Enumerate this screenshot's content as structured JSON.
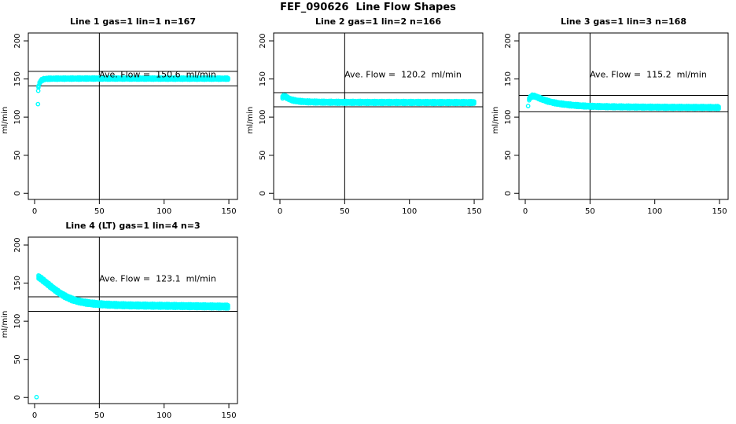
{
  "page": {
    "title": "FEF_090626  Line Flow Shapes"
  },
  "colors": {
    "points": "#00FFFF",
    "axis": "#000000",
    "ref_lines": "#000000",
    "background": "#FFFFFF",
    "text": "#000000"
  },
  "axes": {
    "x_ticks": [
      0,
      50,
      100,
      150
    ],
    "y_ticks": [
      0,
      50,
      100,
      150,
      200
    ],
    "y_label": "ml/min",
    "x_range": [
      0,
      150
    ],
    "y_range": [
      0,
      200
    ],
    "grid": "off",
    "legend": "none"
  },
  "chart_data": [
    {
      "type": "scatter",
      "title": "Line 1 gas=1 lin=1 n=167",
      "n": 167,
      "ave_flow": 150.6,
      "annotation": "Ave. Flow =  150.6  ml/min",
      "vline_x": 50,
      "ref_line_upper": 160,
      "ref_line_lower": 141,
      "band_thickness_px": 1.1,
      "shape": [
        [
          3,
          140
        ],
        [
          3.8,
          144.5
        ],
        [
          4.6,
          147
        ],
        [
          5.5,
          148.5
        ],
        [
          7,
          149.7
        ],
        [
          9,
          150.2
        ],
        [
          12,
          150.4
        ],
        [
          20,
          150.5
        ],
        [
          40,
          150.6
        ],
        [
          70,
          150.6
        ],
        [
          100,
          150.5
        ],
        [
          150,
          150.5
        ]
      ],
      "outliers": [
        [
          2.8,
          134.5
        ],
        [
          2.6,
          117
        ]
      ]
    },
    {
      "type": "scatter",
      "title": "Line 2 gas=1 lin=2 n=166",
      "n": 166,
      "ave_flow": 120.2,
      "annotation": "Ave. Flow =  120.2  ml/min",
      "vline_x": 50,
      "ref_line_upper": 132,
      "ref_line_lower": 113.5,
      "band_thickness_px": 1.5,
      "shape": [
        [
          2,
          126
        ],
        [
          3,
          127.5
        ],
        [
          4,
          127
        ],
        [
          5,
          126
        ],
        [
          6.5,
          124.5
        ],
        [
          8,
          123.2
        ],
        [
          10,
          122.2
        ],
        [
          13,
          121.2
        ],
        [
          16,
          120.6
        ],
        [
          20,
          120.1
        ],
        [
          25,
          119.8
        ],
        [
          32,
          119.6
        ],
        [
          45,
          119.4
        ],
        [
          70,
          119.3
        ],
        [
          110,
          119.2
        ],
        [
          150,
          119.1
        ]
      ],
      "outliers": []
    },
    {
      "type": "scatter",
      "title": "Line 3 gas=1 lin=3 n=168",
      "n": 168,
      "ave_flow": 115.2,
      "annotation": "Ave. Flow =  115.2  ml/min",
      "vline_x": 50,
      "ref_line_upper": 128.5,
      "ref_line_lower": 107,
      "band_thickness_px": 1.5,
      "shape": [
        [
          3,
          123.5
        ],
        [
          4,
          126
        ],
        [
          5,
          127.5
        ],
        [
          6,
          127.8
        ],
        [
          7.5,
          127.3
        ],
        [
          9,
          126.2
        ],
        [
          11,
          124.8
        ],
        [
          14,
          122.8
        ],
        [
          17,
          121
        ],
        [
          21,
          119.3
        ],
        [
          25,
          118
        ],
        [
          30,
          116.8
        ],
        [
          36,
          115.7
        ],
        [
          43,
          114.8
        ],
        [
          52,
          114.1
        ],
        [
          65,
          113.6
        ],
        [
          85,
          113.2
        ],
        [
          110,
          112.9
        ],
        [
          150,
          112.6
        ]
      ],
      "outliers": [
        [
          2.2,
          114.5
        ]
      ]
    },
    {
      "type": "scatter",
      "title": "Line 4 (LT) gas=1 lin=4 n=3",
      "n": 3,
      "ave_flow": 123.1,
      "annotation": "Ave. Flow =  123.1  ml/min",
      "vline_x": 50,
      "ref_line_upper": 132,
      "ref_line_lower": 113,
      "band_thickness_px": 2.1,
      "shape": [
        [
          3,
          158
        ],
        [
          4.5,
          156.5
        ],
        [
          6,
          154.5
        ],
        [
          8,
          151.8
        ],
        [
          10,
          149
        ],
        [
          12,
          146.3
        ],
        [
          14,
          143.6
        ],
        [
          16,
          141
        ],
        [
          18,
          138.6
        ],
        [
          20,
          136.3
        ],
        [
          23,
          133.3
        ],
        [
          26,
          130.7
        ],
        [
          29,
          128.6
        ],
        [
          32,
          127
        ],
        [
          36,
          125.4
        ],
        [
          40,
          124.2
        ],
        [
          45,
          123.2
        ],
        [
          50,
          122.4
        ],
        [
          57,
          121.7
        ],
        [
          65,
          121.2
        ],
        [
          75,
          120.8
        ],
        [
          90,
          120.4
        ],
        [
          110,
          120
        ],
        [
          130,
          119.6
        ],
        [
          150,
          119.2
        ]
      ],
      "outliers": [
        [
          1.5,
          0.5
        ]
      ]
    }
  ]
}
